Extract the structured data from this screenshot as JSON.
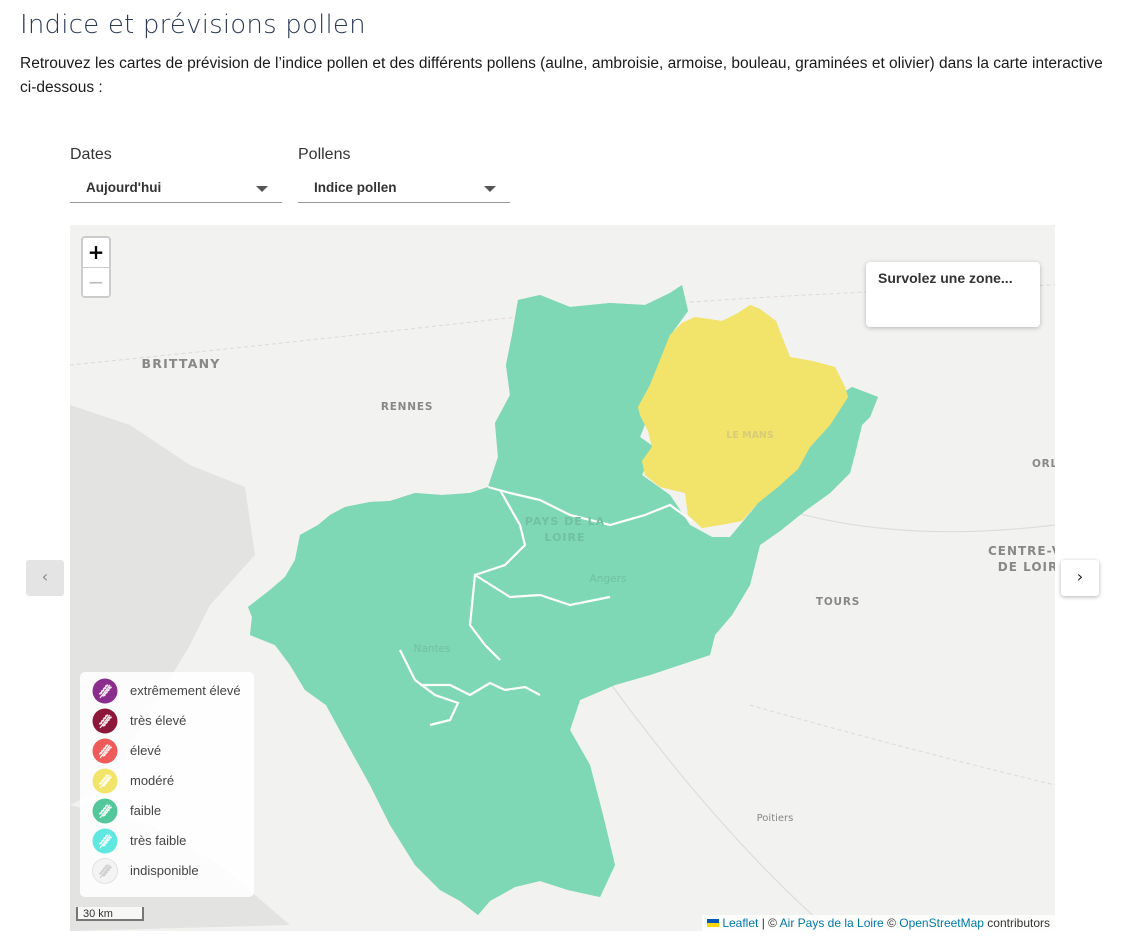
{
  "page": {
    "title": "Indice et prévisions pollen",
    "intro": "Retrouvez les cartes de prévision de l’indice pollen et des différents pollens (aulne, ambroisie, armoise, bouleau, graminées et olivier) dans la carte interactive ci-dessous :"
  },
  "filters": {
    "dates": {
      "label": "Dates",
      "selected": "Aujourd'hui"
    },
    "pollens": {
      "label": "Pollens",
      "selected": "Indice pollen"
    }
  },
  "map": {
    "zoom_in": "+",
    "zoom_out": "−",
    "hover_info": "Survolez une zone...",
    "place_labels": {
      "brittany": "BRITTANY",
      "rennes": "RENNES",
      "le_mans": "LE MANS",
      "pays_de_la_loire_1": "PAYS DE LA",
      "pays_de_la_loire_2": "LOIRE",
      "angers": "Angers",
      "nantes": "Nantes",
      "tours": "TOURS",
      "centre_1": "CENTRE-V",
      "centre_2": "DE LOIR",
      "orl": "ORL",
      "poitiers": "Poitiers"
    },
    "colors": {
      "faible": "#7fd8b5",
      "modere": "#f2e36a",
      "border": "#ffffff",
      "background": "#f2f2f0"
    },
    "scale": "30 km",
    "attribution": {
      "leaflet": "Leaflet",
      "sep1": " | © ",
      "air": "Air Pays de la Loire",
      "sep2": " © ",
      "osm": "OpenStreetMap",
      "contrib": " contributors"
    }
  },
  "legend": [
    {
      "label": "extrêmement élevé",
      "color": "#8a2d8c"
    },
    {
      "label": "très élevé",
      "color": "#8c1738"
    },
    {
      "label": "élevé",
      "color": "#ef5a5a"
    },
    {
      "label": "modéré",
      "color": "#f2e36a"
    },
    {
      "label": "faible",
      "color": "#53c79a"
    },
    {
      "label": "très faible",
      "color": "#5fe8df"
    },
    {
      "label": "indisponible",
      "color": "#f4f4f4"
    }
  ],
  "nav": {
    "prev": "‹",
    "next": "›"
  }
}
